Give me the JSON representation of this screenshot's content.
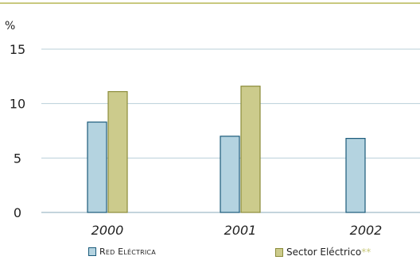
{
  "chart_data": {
    "type": "bar",
    "unit_label": "%",
    "categories": [
      "2000",
      "2001",
      "2002"
    ],
    "series": [
      {
        "name": "Red Eléctrica",
        "values": [
          8.3,
          7.0,
          6.8
        ],
        "color": "#b4d3e0",
        "edge": "#1a5a7a"
      },
      {
        "name": "Sector Eléctrico",
        "name_suffix": "**",
        "values": [
          11.1,
          11.6,
          null
        ],
        "color": "#cccb8c",
        "edge": "#8b8c3a"
      }
    ],
    "ylim": [
      0,
      15
    ],
    "yticks": [
      0,
      5,
      10,
      15
    ],
    "grid": true,
    "top_rule_color": "#c9c97e"
  }
}
